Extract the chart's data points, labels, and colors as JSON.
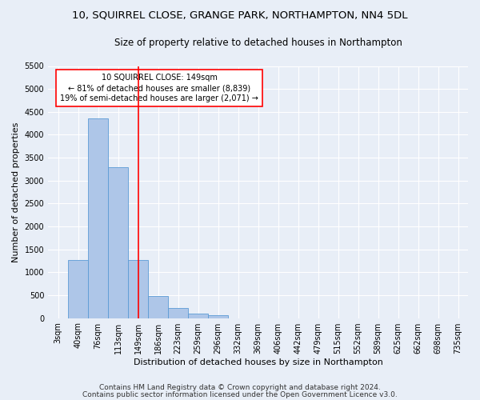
{
  "title": "10, SQUIRREL CLOSE, GRANGE PARK, NORTHAMPTON, NN4 5DL",
  "subtitle": "Size of property relative to detached houses in Northampton",
  "xlabel": "Distribution of detached houses by size in Northampton",
  "ylabel": "Number of detached properties",
  "footer_line1": "Contains HM Land Registry data © Crown copyright and database right 2024.",
  "footer_line2": "Contains public sector information licensed under the Open Government Licence v3.0.",
  "bar_labels": [
    "3sqm",
    "40sqm",
    "76sqm",
    "113sqm",
    "149sqm",
    "186sqm",
    "223sqm",
    "259sqm",
    "296sqm",
    "332sqm",
    "369sqm",
    "406sqm",
    "442sqm",
    "479sqm",
    "515sqm",
    "552sqm",
    "589sqm",
    "625sqm",
    "662sqm",
    "698sqm",
    "735sqm"
  ],
  "bar_values": [
    0,
    1270,
    4350,
    3300,
    1270,
    490,
    220,
    90,
    55,
    0,
    0,
    0,
    0,
    0,
    0,
    0,
    0,
    0,
    0,
    0,
    0
  ],
  "bar_color": "#aec6e8",
  "bar_edge_color": "#5b9bd5",
  "vline_x_index": 4,
  "vline_color": "red",
  "annotation_text": "10 SQUIRREL CLOSE: 149sqm\n← 81% of detached houses are smaller (8,839)\n19% of semi-detached houses are larger (2,071) →",
  "annotation_box_color": "white",
  "annotation_box_edge": "red",
  "ylim": [
    0,
    5500
  ],
  "yticks": [
    0,
    500,
    1000,
    1500,
    2000,
    2500,
    3000,
    3500,
    4000,
    4500,
    5000,
    5500
  ],
  "background_color": "#e8eef7",
  "plot_bg_color": "#e8eef7",
  "grid_color": "white",
  "title_fontsize": 9.5,
  "subtitle_fontsize": 8.5,
  "axis_label_fontsize": 8,
  "tick_fontsize": 7,
  "annotation_fontsize": 7,
  "footer_fontsize": 6.5
}
